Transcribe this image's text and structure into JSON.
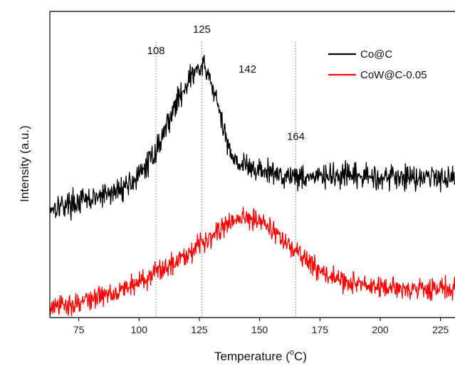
{
  "chart_data": {
    "type": "line",
    "xlabel": "Temperature (°C)",
    "xlabel_main": "Temperature (",
    "xlabel_degree": "o",
    "xlabel_unit": "C)",
    "ylabel": "Intensity (a.u.)",
    "xlim": [
      63,
      231
    ],
    "ylim": [
      0,
      1
    ],
    "y_ticks_shown": false,
    "grid": false,
    "legend_position": "top-right",
    "x_ticks": [
      75,
      100,
      125,
      150,
      175,
      200,
      225
    ],
    "x_tick_labels": [
      "75",
      "100",
      "125",
      "150",
      "175",
      "200",
      "225"
    ],
    "reference_lines": [
      107,
      126,
      165
    ],
    "annotations": [
      {
        "text": "108",
        "x": 107,
        "y": 0.86
      },
      {
        "text": "125",
        "x": 126,
        "y": 0.93
      },
      {
        "text": "142",
        "x": 142,
        "y": 0.8
      },
      {
        "text": "164",
        "x": 165,
        "y": 0.58
      }
    ],
    "series": [
      {
        "name": "Co@C",
        "color": "#000000",
        "noise": 0.025,
        "x": [
          63,
          70,
          80,
          90,
          100,
          105,
          108,
          112,
          116,
          120,
          124,
          127,
          130,
          133,
          136,
          140,
          145,
          150,
          160,
          170,
          180,
          200,
          231
        ],
        "y": [
          0.36,
          0.37,
          0.385,
          0.41,
          0.46,
          0.52,
          0.56,
          0.64,
          0.71,
          0.77,
          0.81,
          0.815,
          0.77,
          0.68,
          0.58,
          0.515,
          0.49,
          0.48,
          0.465,
          0.46,
          0.46,
          0.46,
          0.46
        ]
      },
      {
        "name": "CoW@C-0.05",
        "color": "#ff0000",
        "noise": 0.022,
        "x": [
          63,
          70,
          80,
          90,
          100,
          110,
          120,
          130,
          140,
          148,
          155,
          160,
          170,
          180,
          190,
          200,
          231
        ],
        "y": [
          0.03,
          0.04,
          0.06,
          0.085,
          0.115,
          0.16,
          0.21,
          0.27,
          0.32,
          0.33,
          0.29,
          0.25,
          0.18,
          0.13,
          0.11,
          0.095,
          0.095
        ]
      }
    ]
  }
}
